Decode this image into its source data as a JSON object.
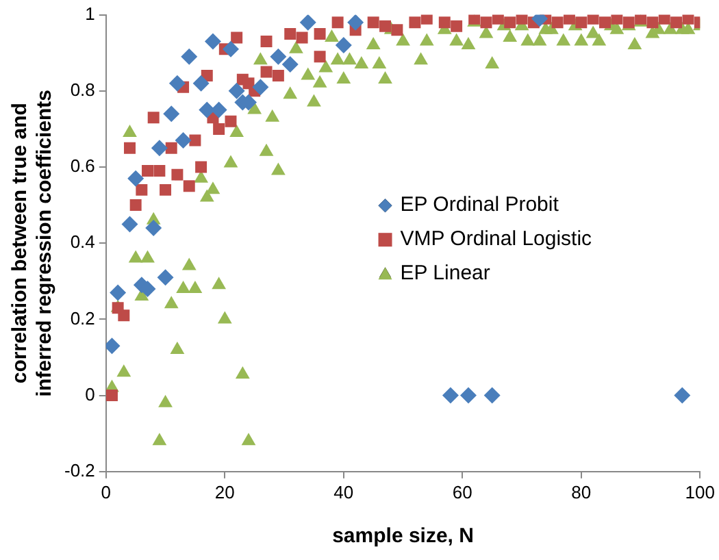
{
  "chart_data": {
    "type": "scatter",
    "xlabel": "sample size, N",
    "ylabel": "correlation between true and inferred regression coefficients",
    "xlim": [
      0,
      100
    ],
    "ylim": [
      -0.2,
      1
    ],
    "xticks": [
      0,
      20,
      40,
      60,
      80,
      100
    ],
    "yticks": [
      -0.2,
      0,
      0.2,
      0.4,
      0.6,
      0.8,
      1
    ],
    "grid": false,
    "legend": "right",
    "series": [
      {
        "name": "EP Ordinal Probit",
        "color": "#4a7ebb",
        "marker": "diamond",
        "x": [
          1,
          2,
          4,
          5,
          6,
          7,
          8,
          9,
          10,
          11,
          12,
          13,
          14,
          16,
          17,
          18,
          19,
          21,
          22,
          23,
          24,
          26,
          29,
          31,
          34,
          40,
          42,
          58,
          61,
          65,
          73,
          97
        ],
        "values": [
          0.13,
          0.27,
          0.45,
          0.57,
          0.29,
          0.28,
          0.44,
          0.65,
          0.31,
          0.74,
          0.82,
          0.67,
          0.89,
          0.82,
          0.75,
          0.93,
          0.75,
          0.91,
          0.8,
          0.77,
          0.77,
          0.81,
          0.89,
          0.87,
          0.98,
          0.92,
          0.98,
          0,
          0,
          0,
          0.99,
          0
        ]
      },
      {
        "name": "VMP Ordinal Logistic",
        "color": "#be4b48",
        "marker": "square",
        "x": [
          1,
          2,
          3,
          4,
          5,
          6,
          7,
          8,
          9,
          10,
          11,
          12,
          13,
          14,
          15,
          16,
          17,
          18,
          19,
          20,
          21,
          22,
          23,
          24,
          25,
          27,
          27,
          29,
          31,
          33,
          36,
          36,
          39,
          42,
          45,
          47,
          49,
          52,
          54,
          57,
          59,
          62,
          64,
          66,
          68,
          70,
          72,
          74,
          76,
          78,
          80,
          82,
          84,
          86,
          88,
          90,
          92,
          94,
          96,
          98,
          100
        ],
        "values": [
          0,
          0.23,
          0.21,
          0.65,
          0.5,
          0.54,
          0.59,
          0.73,
          0.59,
          0.54,
          0.65,
          0.58,
          0.81,
          0.55,
          0.67,
          0.6,
          0.84,
          0.73,
          0.7,
          0.91,
          0.72,
          0.94,
          0.83,
          0.82,
          0.8,
          0.93,
          0.85,
          0.84,
          0.95,
          0.94,
          0.89,
          0.95,
          0.98,
          0.96,
          0.98,
          0.97,
          0.96,
          0.98,
          0.99,
          0.98,
          0.97,
          0.99,
          0.98,
          0.99,
          0.98,
          0.99,
          0.98,
          0.99,
          0.98,
          0.99,
          0.98,
          0.99,
          0.98,
          0.99,
          0.98,
          0.99,
          0.98,
          0.99,
          0.98,
          0.99,
          0.98
        ]
      },
      {
        "name": "EP Linear",
        "color": "#98b954",
        "marker": "triangle",
        "x": [
          1,
          2,
          3,
          4,
          5,
          6,
          7,
          8,
          9,
          10,
          11,
          12,
          13,
          14,
          15,
          16,
          17,
          18,
          19,
          20,
          21,
          22,
          23,
          24,
          25,
          26,
          27,
          28,
          29,
          31,
          32,
          34,
          35,
          36,
          37,
          38,
          39,
          40,
          41,
          43,
          45,
          46,
          47,
          48,
          50,
          53,
          54,
          57,
          59,
          61,
          62,
          64,
          65,
          67,
          68,
          70,
          71,
          73,
          74,
          75,
          77,
          79,
          80,
          82,
          83,
          85,
          86,
          88,
          89,
          90,
          92,
          93,
          95,
          97,
          98,
          100
        ],
        "values": [
          0.02,
          0.23,
          0.06,
          0.69,
          0.36,
          0.26,
          0.36,
          0.46,
          -0.12,
          -0.02,
          0.24,
          0.12,
          0.28,
          0.34,
          0.28,
          0.57,
          0.52,
          0.54,
          0.29,
          0.2,
          0.61,
          0.69,
          0.055,
          -0.12,
          0.75,
          0.88,
          0.64,
          0.73,
          0.59,
          0.79,
          0.91,
          0.84,
          0.77,
          0.82,
          0.86,
          0.94,
          0.88,
          0.83,
          0.88,
          0.87,
          0.92,
          0.87,
          0.83,
          0.96,
          0.93,
          0.88,
          0.93,
          0.96,
          0.93,
          0.92,
          0.98,
          0.95,
          0.87,
          0.97,
          0.94,
          0.97,
          0.93,
          0.93,
          0.96,
          0.96,
          0.93,
          0.97,
          0.93,
          0.95,
          0.93,
          0.97,
          0.96,
          0.97,
          0.92,
          0.98,
          0.95,
          0.96,
          0.96,
          0.96,
          0.96,
          0.97
        ]
      }
    ]
  }
}
